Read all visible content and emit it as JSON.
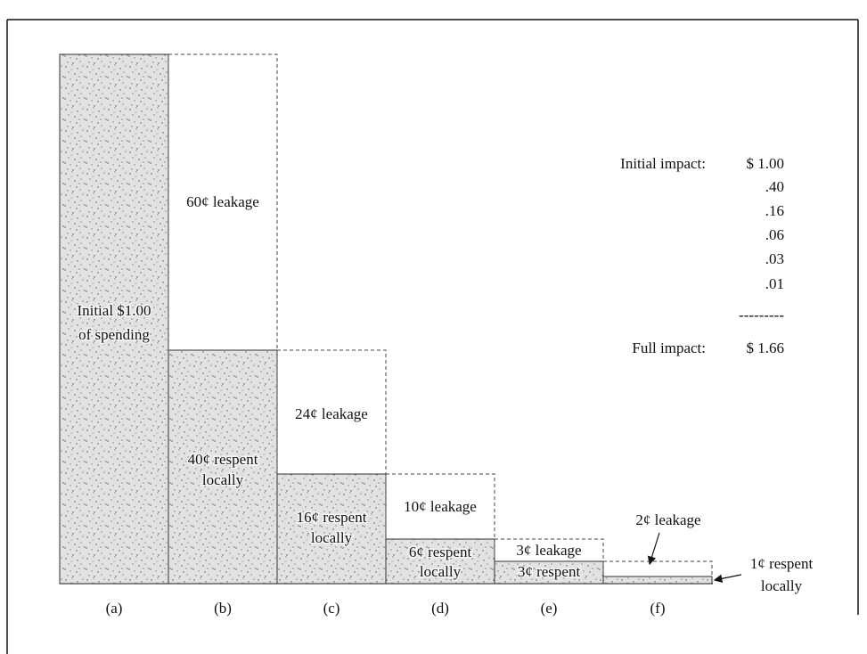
{
  "columns": [
    {
      "letter": "(a)",
      "respent": [
        "Initial $1.00",
        "of spending"
      ]
    },
    {
      "letter": "(b)",
      "leakage": [
        "60¢ leakage"
      ],
      "respent": [
        "40¢ respent",
        "locally"
      ]
    },
    {
      "letter": "(c)",
      "leakage": [
        "24¢ leakage"
      ],
      "respent": [
        "16¢ respent",
        "locally"
      ]
    },
    {
      "letter": "(d)",
      "leakage": [
        "10¢ leakage"
      ],
      "respent": [
        "6¢ respent",
        "locally"
      ]
    },
    {
      "letter": "(e)",
      "leakage": [
        "3¢ leakage"
      ],
      "respent": [
        "3¢ respent"
      ]
    },
    {
      "letter": "(f)"
    }
  ],
  "callouts": [
    {
      "lines": [
        "2¢ leakage"
      ]
    },
    {
      "lines": [
        "1¢ respent",
        "locally"
      ]
    }
  ],
  "impact": {
    "rows": [
      {
        "label": "Initial impact:",
        "value": "$ 1.00"
      },
      {
        "value": ".40"
      },
      {
        "value": ".16"
      },
      {
        "value": ".06"
      },
      {
        "value": ".03"
      },
      {
        "value": ".01"
      }
    ],
    "separator": "---------",
    "total": {
      "label": "Full impact:",
      "value": "$ 1.66"
    }
  }
}
